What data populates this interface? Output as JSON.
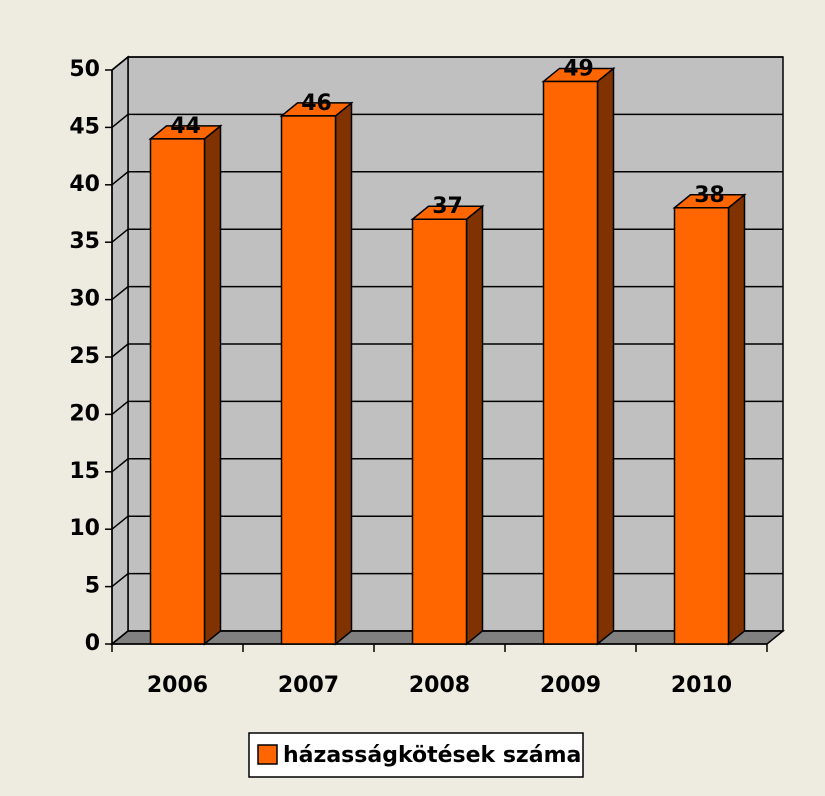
{
  "chart_data": {
    "type": "bar3d",
    "categories": [
      "2006",
      "2007",
      "2008",
      "2009",
      "2010"
    ],
    "series": [
      {
        "name": "házasságkötések száma",
        "color": "#ff6600",
        "values": [
          44,
          46,
          37,
          49,
          38
        ]
      }
    ],
    "ylim": [
      0,
      50
    ],
    "yticks": [
      0,
      5,
      10,
      15,
      20,
      25,
      30,
      35,
      40,
      45,
      50
    ],
    "grid": true,
    "legend": "bottom"
  }
}
